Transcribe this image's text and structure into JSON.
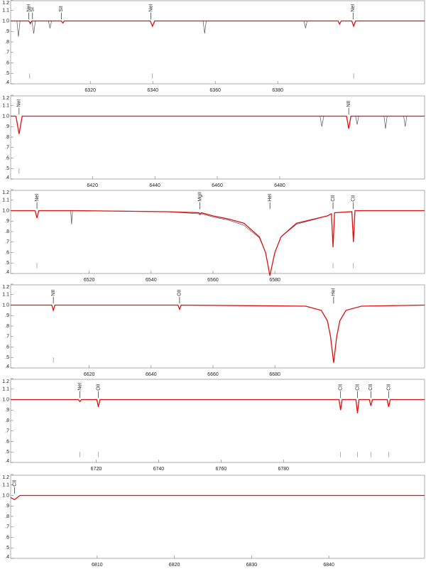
{
  "chart_data": [
    {
      "type": "line",
      "xlim": [
        6294.5,
        6427
      ],
      "ylim": [
        0.4,
        1.2
      ],
      "xticks": [
        6320,
        6340,
        6360,
        6380
      ],
      "yticks": [
        {
          "value": 0.4,
          "label": ".4"
        },
        {
          "value": 0.5,
          "label": ".5"
        },
        {
          "value": 0.6,
          "label": ".6"
        },
        {
          "value": 0.7,
          "label": ".7"
        },
        {
          "value": 0.8,
          "label": ".8"
        },
        {
          "value": 0.9,
          "label": ".9"
        },
        {
          "value": 1.0,
          "label": "1.0"
        },
        {
          "value": 1.1,
          "label": "1.1"
        },
        {
          "value": 1.2,
          "label": "1.2"
        }
      ],
      "x": [
        6294.5,
        6296.5,
        6297,
        6297.5,
        6300.3,
        6300.8,
        6301.3,
        6301.9,
        6302.4,
        6306.6,
        6307.1,
        6307.6,
        6310.7,
        6311.2,
        6311.7,
        6339.2,
        6339.9,
        6340.6,
        6356.1,
        6356.6,
        6357.1,
        6388.4,
        6388.9,
        6389.4,
        6399.3,
        6399.8,
        6400.3,
        6403.7,
        6404.3,
        6404.9,
        6427
      ],
      "series": [
        {
          "color": "#555555",
          "values": [
            1.0,
            1.0,
            0.85,
            1.0,
            1.0,
            0.97,
            1.0,
            0.88,
            1.0,
            1.0,
            0.93,
            1.0,
            1.0,
            0.98,
            1.0,
            1.0,
            0.95,
            1.0,
            1.0,
            0.88,
            1.0,
            1.0,
            0.93,
            1.0,
            1.0,
            0.97,
            1.0,
            1.0,
            0.95,
            1.0,
            1.0
          ]
        },
        {
          "color": "#dd1111",
          "values": [
            1.0,
            1.0,
            1.0,
            1.0,
            1.0,
            0.98,
            1.0,
            1.0,
            1.0,
            1.0,
            1.0,
            1.0,
            1.0,
            0.98,
            1.0,
            1.0,
            0.95,
            1.0,
            1.0,
            1.0,
            1.0,
            1.0,
            1.0,
            1.0,
            1.0,
            0.97,
            1.0,
            1.0,
            0.95,
            1.0,
            1.0
          ]
        }
      ],
      "annotations": [
        {
          "text": "NeI",
          "x": 6300.3
        },
        {
          "text": "SI",
          "x": 6301.5
        },
        {
          "text": "SII",
          "x": 6310.7
        },
        {
          "text": "NeI",
          "x": 6339.4
        },
        {
          "text": "NeI",
          "x": 6404.1
        }
      ],
      "marker_ticks": [
        6300.6,
        6339.9,
        6404.3
      ]
    },
    {
      "type": "line",
      "xlim": [
        6393.8,
        6526.4
      ],
      "ylim": [
        0.4,
        1.2
      ],
      "xticks": [
        6420,
        6440,
        6460,
        6480
      ],
      "yticks": [
        {
          "value": 0.4,
          "label": ".4"
        },
        {
          "value": 0.5,
          "label": ".5"
        },
        {
          "value": 0.6,
          "label": ".6"
        },
        {
          "value": 0.7,
          "label": ".7"
        },
        {
          "value": 0.8,
          "label": ".8"
        },
        {
          "value": 0.9,
          "label": ".9"
        },
        {
          "value": 1.0,
          "label": "1.0"
        },
        {
          "value": 1.1,
          "label": "1.1"
        },
        {
          "value": 1.2,
          "label": "1.2"
        }
      ],
      "x": [
        6393.8,
        6395.5,
        6396.5,
        6397.5,
        6492.9,
        6493.5,
        6494.1,
        6501.4,
        6502.1,
        6502.8,
        6504.3,
        6504.8,
        6505.3,
        6513.4,
        6513.9,
        6514.4,
        6519.7,
        6520.2,
        6520.7,
        6526.4
      ],
      "series": [
        {
          "color": "#555555",
          "values": [
            1.0,
            1.0,
            0.83,
            1.0,
            1.0,
            0.9,
            1.0,
            1.0,
            0.88,
            1.0,
            1.0,
            0.92,
            1.0,
            1.0,
            0.88,
            1.0,
            1.0,
            0.9,
            1.0,
            1.0
          ]
        },
        {
          "color": "#dd1111",
          "values": [
            1.0,
            1.0,
            0.83,
            1.0,
            1.0,
            1.0,
            1.0,
            1.0,
            0.88,
            1.0,
            1.0,
            1.0,
            1.0,
            1.0,
            1.0,
            1.0,
            1.0,
            1.0,
            1.0,
            1.0
          ]
        }
      ],
      "annotations": [
        {
          "text": "NeI",
          "x": 6396.5
        },
        {
          "text": "NII",
          "x": 6502.1
        }
      ],
      "marker_ticks": [
        6396.5
      ]
    },
    {
      "type": "line",
      "xlim": [
        6494.6,
        6628.4
      ],
      "ylim": [
        0.4,
        1.2
      ],
      "xticks": [
        6520,
        6540,
        6560,
        6580
      ],
      "yticks": [
        {
          "value": 0.4,
          "label": ".4"
        },
        {
          "value": 0.5,
          "label": ".5"
        },
        {
          "value": 0.6,
          "label": ".6"
        },
        {
          "value": 0.7,
          "label": ".7"
        },
        {
          "value": 0.8,
          "label": ".8"
        },
        {
          "value": 0.9,
          "label": ".9"
        },
        {
          "value": 1.0,
          "label": "1.0"
        },
        {
          "value": 1.1,
          "label": "1.1"
        },
        {
          "value": 1.2,
          "label": "1.2"
        }
      ],
      "x": [
        6494.6,
        6502.5,
        6503.1,
        6503.7,
        6514,
        6514.3,
        6514.6,
        6545,
        6555.3,
        6555.8,
        6556.3,
        6560,
        6565,
        6570,
        6575,
        6577,
        6578.4,
        6580,
        6582,
        6587,
        6597,
        6598.3,
        6598.8,
        6599.3,
        6604.9,
        6605.4,
        6605.9,
        6628.4
      ],
      "series": [
        {
          "color": "#555555",
          "values": [
            1.0,
            1.0,
            0.93,
            1.0,
            1.0,
            0.87,
            1.0,
            0.99,
            0.97,
            0.96,
            0.97,
            0.94,
            0.91,
            0.86,
            0.74,
            0.6,
            0.38,
            0.6,
            0.75,
            0.87,
            0.95,
            0.97,
            0.65,
            0.98,
            0.99,
            0.7,
            1.0,
            1.0
          ]
        },
        {
          "color": "#dd1111",
          "values": [
            1.0,
            1.0,
            0.93,
            1.0,
            1.0,
            1.0,
            1.0,
            0.99,
            0.98,
            0.97,
            0.98,
            0.95,
            0.92,
            0.88,
            0.75,
            0.6,
            0.38,
            0.6,
            0.75,
            0.88,
            0.95,
            0.97,
            0.65,
            0.98,
            0.99,
            0.7,
            1.0,
            1.0
          ]
        }
      ],
      "annotations": [
        {
          "text": "NeI",
          "x": 6503.1
        },
        {
          "text": "MgII",
          "x": 6555.8
        },
        {
          "text": "HeI",
          "x": 6578.4
        },
        {
          "text": "CII",
          "x": 6598.8
        },
        {
          "text": "CII",
          "x": 6605.4
        }
      ],
      "marker_ticks": [
        6503.1,
        6598.8,
        6605.4
      ]
    },
    {
      "type": "line",
      "xlim": [
        6594.6,
        6728.4
      ],
      "ylim": [
        0.4,
        1.2
      ],
      "xticks": [
        6620,
        6640,
        6660,
        6680
      ],
      "yticks": [
        {
          "value": 0.4,
          "label": ".4"
        },
        {
          "value": 0.5,
          "label": ".5"
        },
        {
          "value": 0.6,
          "label": ".6"
        },
        {
          "value": 0.7,
          "label": ".7"
        },
        {
          "value": 0.8,
          "label": ".8"
        },
        {
          "value": 0.9,
          "label": ".9"
        },
        {
          "value": 1.0,
          "label": "1.0"
        },
        {
          "value": 1.1,
          "label": "1.1"
        },
        {
          "value": 1.2,
          "label": "1.2"
        }
      ],
      "x": [
        6594.6,
        6607.9,
        6608.4,
        6608.9,
        6648.7,
        6649.2,
        6649.7,
        6690,
        6695,
        6697,
        6698,
        6699,
        6700,
        6701,
        6703,
        6708,
        6728.4
      ],
      "series": [
        {
          "color": "#555555",
          "values": [
            1.0,
            1.0,
            0.95,
            1.0,
            1.0,
            0.96,
            1.0,
            0.99,
            0.95,
            0.85,
            0.7,
            0.45,
            0.7,
            0.85,
            0.95,
            0.99,
            1.0
          ]
        },
        {
          "color": "#dd1111",
          "values": [
            1.0,
            1.0,
            0.95,
            1.0,
            1.0,
            0.96,
            1.0,
            0.99,
            0.95,
            0.85,
            0.7,
            0.45,
            0.7,
            0.85,
            0.95,
            0.99,
            1.0
          ]
        }
      ],
      "annotations": [
        {
          "text": "NII",
          "x": 6608.4
        },
        {
          "text": "OII",
          "x": 6649.2
        },
        {
          "text": "HeI",
          "x": 6699
        }
      ],
      "marker_ticks": [
        6608.4
      ]
    },
    {
      "type": "line",
      "xlim": [
        6692.6,
        6825.2
      ],
      "ylim": [
        0.4,
        1.2
      ],
      "xticks": [
        6720,
        6740,
        6760,
        6780
      ],
      "yticks": [
        {
          "value": 0.4,
          "label": ".4"
        },
        {
          "value": 0.5,
          "label": ".5"
        },
        {
          "value": 0.6,
          "label": ".6"
        },
        {
          "value": 0.7,
          "label": ".7"
        },
        {
          "value": 0.8,
          "label": ".8"
        },
        {
          "value": 0.9,
          "label": ".9"
        },
        {
          "value": 1.0,
          "label": "1.0"
        },
        {
          "value": 1.1,
          "label": "1.1"
        },
        {
          "value": 1.2,
          "label": "1.2"
        }
      ],
      "x": [
        6692.6,
        6714.3,
        6714.8,
        6715.3,
        6720.2,
        6720.7,
        6721.2,
        6797.8,
        6798.3,
        6798.8,
        6803.2,
        6803.7,
        6804.2,
        6807.5,
        6808,
        6808.5,
        6813.2,
        6813.7,
        6814.2,
        6825.2
      ],
      "series": [
        {
          "color": "#555555",
          "values": [
            1.0,
            1.0,
            0.98,
            1.0,
            1.0,
            0.93,
            1.0,
            1.0,
            0.9,
            1.0,
            1.0,
            0.87,
            1.0,
            1.0,
            0.94,
            1.0,
            1.0,
            0.93,
            1.0,
            1.0
          ]
        },
        {
          "color": "#dd1111",
          "values": [
            1.0,
            1.0,
            0.98,
            1.0,
            1.0,
            0.93,
            1.0,
            1.0,
            0.9,
            1.0,
            1.0,
            0.87,
            1.0,
            1.0,
            0.94,
            1.0,
            1.0,
            0.93,
            1.0,
            1.0
          ]
        }
      ],
      "annotations": [
        {
          "text": "NeI",
          "x": 6714.8
        },
        {
          "text": "OII",
          "x": 6720.7
        },
        {
          "text": "CII",
          "x": 6798.3
        },
        {
          "text": "CII",
          "x": 6803.7
        },
        {
          "text": "CII",
          "x": 6808
        },
        {
          "text": "CII",
          "x": 6813.7
        }
      ],
      "marker_ticks": [
        6714.8,
        6720.7,
        6798.3,
        6803.7,
        6808,
        6813.7
      ]
    },
    {
      "type": "line",
      "xlim": [
        6798.8,
        6852.4
      ],
      "ylim": [
        0.4,
        1.2
      ],
      "xticks": [
        6810,
        6820,
        6830,
        6840
      ],
      "yticks": [
        {
          "value": 0.4,
          "label": ".4"
        },
        {
          "value": 0.5,
          "label": ".5"
        },
        {
          "value": 0.6,
          "label": ".6"
        },
        {
          "value": 0.7,
          "label": ".7"
        },
        {
          "value": 0.8,
          "label": ".8"
        },
        {
          "value": 0.9,
          "label": ".9"
        },
        {
          "value": 1.0,
          "label": "1.0"
        },
        {
          "value": 1.1,
          "label": "1.1"
        },
        {
          "value": 1.2,
          "label": "1.2"
        }
      ],
      "x": [
        6798.8,
        6799.3,
        6800,
        6852.4
      ],
      "series": [
        {
          "color": "#555555",
          "values": [
            0.98,
            0.96,
            1.0,
            1.0
          ]
        },
        {
          "color": "#dd1111",
          "values": [
            0.98,
            0.96,
            1.0,
            1.0
          ]
        }
      ],
      "annotations": [
        {
          "text": "CII",
          "x": 6799.3
        }
      ],
      "marker_ticks": []
    }
  ]
}
